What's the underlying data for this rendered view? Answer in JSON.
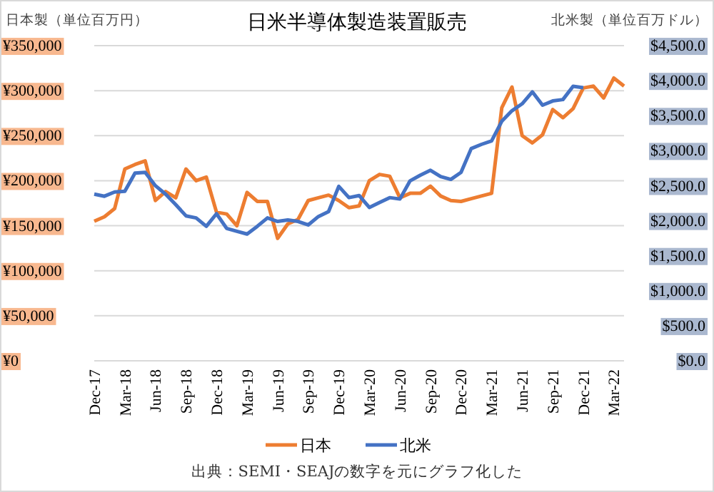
{
  "chart_data": {
    "type": "line",
    "title": "日米半導体製造装置販売",
    "ylabel": "日本製（単位百万円）",
    "y2label": "北米製（単位百万ドル）",
    "categories": [
      "Dec-17",
      null,
      null,
      "Mar-18",
      null,
      null,
      "Jun-18",
      null,
      null,
      "Sep-18",
      null,
      null,
      "Dec-18",
      null,
      null,
      "Mar-19",
      null,
      null,
      "Jun-19",
      null,
      null,
      "Sep-19",
      null,
      null,
      "Dec-19",
      null,
      null,
      "Mar-20",
      null,
      null,
      "Jun-20",
      null,
      null,
      "Sep-20",
      null,
      null,
      "Dec-20",
      null,
      null,
      "Mar-21",
      null,
      null,
      "Jun-21",
      null,
      null,
      "Sep-21",
      null,
      null,
      "Dec-21",
      null,
      null,
      "Mar-22",
      null
    ],
    "series": [
      {
        "name": "日本",
        "color": "#ed7d31",
        "values": [
          155000,
          160000,
          169000,
          213000,
          218000,
          222000,
          178000,
          188000,
          181000,
          213000,
          200000,
          204000,
          165000,
          163000,
          150000,
          187000,
          177000,
          177000,
          136000,
          152000,
          157000,
          178000,
          181000,
          184000,
          178000,
          170000,
          172000,
          200000,
          207000,
          205000,
          181000,
          186000,
          186000,
          194000,
          183000,
          178000,
          177000,
          180000,
          183000,
          186000,
          281000,
          304000,
          250000,
          242000,
          251000,
          279000,
          270000,
          280000,
          303000,
          305000,
          292000,
          314000,
          305000
        ]
      },
      {
        "name": "北米",
        "color": "#4472c4",
        "axis": "y2",
        "values": [
          2380,
          2350,
          2410,
          2420,
          2680,
          2690,
          2500,
          2380,
          2230,
          2070,
          2040,
          1920,
          2100,
          1890,
          1850,
          1810,
          1920,
          2040,
          1990,
          2010,
          1990,
          1940,
          2060,
          2130,
          2490,
          2330,
          2360,
          2190,
          2260,
          2330,
          2310,
          2570,
          2650,
          2720,
          2630,
          2590,
          2690,
          3030,
          3090,
          3140,
          3420,
          3570,
          3670,
          3840,
          3650,
          3710,
          3730,
          3920,
          3900,
          null,
          null,
          null,
          null
        ]
      }
    ],
    "ylim": [
      0,
      350000
    ],
    "yticks": [
      {
        "value": 0,
        "label": "¥0"
      },
      {
        "value": 50000,
        "label": "¥50,000"
      },
      {
        "value": 100000,
        "label": "¥100,000"
      },
      {
        "value": 150000,
        "label": "¥150,000"
      },
      {
        "value": 200000,
        "label": "¥200,000"
      },
      {
        "value": 250000,
        "label": "¥250,000"
      },
      {
        "value": 300000,
        "label": "¥300,000"
      },
      {
        "value": 350000,
        "label": "¥350,000"
      }
    ],
    "y2lim": [
      0,
      4500
    ],
    "y2ticks": [
      {
        "value": 0,
        "label": "$0.0"
      },
      {
        "value": 500,
        "label": "$500.0"
      },
      {
        "value": 1000,
        "label": "$1,000.0"
      },
      {
        "value": 1500,
        "label": "$1,500.0"
      },
      {
        "value": 2000,
        "label": "$2,000.0"
      },
      {
        "value": 2500,
        "label": "$2,500.0"
      },
      {
        "value": 3000,
        "label": "$3,000.0"
      },
      {
        "value": 3500,
        "label": "$3,500.0"
      },
      {
        "value": 4000,
        "label": "$4,000.0"
      },
      {
        "value": 4500,
        "label": "$4,500.0"
      }
    ],
    "grid": "y",
    "legend": "bottom",
    "annotations": [
      "出典：SEMI・SEAJの数字を元にグラフ化した"
    ]
  }
}
